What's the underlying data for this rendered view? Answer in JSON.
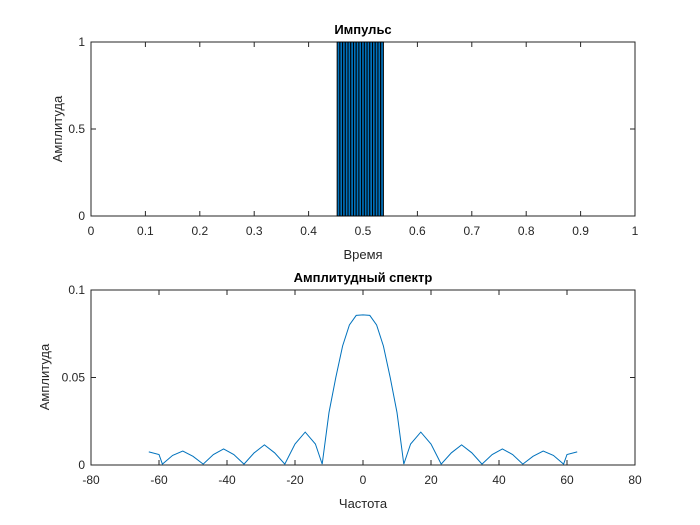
{
  "chart_data": [
    {
      "type": "bar",
      "title": "Импульс",
      "xlabel": "Время",
      "ylabel": "Амплитуда",
      "xlim": [
        0,
        1
      ],
      "ylim": [
        0,
        1
      ],
      "xticks": [
        "0",
        "0.1",
        "0.2",
        "0.3",
        "0.4",
        "0.5",
        "0.6",
        "0.7",
        "0.8",
        "0.9",
        "1"
      ],
      "yticks": [
        "0",
        "0.5",
        "1"
      ],
      "bar_color": "#0072BD",
      "bar_edge_color": "#000000",
      "x": [
        0.455,
        0.46,
        0.465,
        0.47,
        0.475,
        0.48,
        0.485,
        0.49,
        0.495,
        0.5,
        0.505,
        0.51,
        0.515,
        0.52,
        0.525,
        0.53,
        0.535
      ],
      "values": [
        1,
        1,
        1,
        1,
        1,
        1,
        1,
        1,
        1,
        1,
        1,
        1,
        1,
        1,
        1,
        1,
        1
      ]
    },
    {
      "type": "line",
      "title": "Амплитудный спектр",
      "xlabel": "Частота",
      "ylabel": "Амплитуда",
      "xlim": [
        -80,
        80
      ],
      "ylim": [
        0,
        0.1
      ],
      "xticks": [
        "-80",
        "-60",
        "-40",
        "-20",
        "0",
        "20",
        "40",
        "60",
        "80"
      ],
      "yticks": [
        "0",
        "0.05",
        "0.1"
      ],
      "line_color": "#0072BD",
      "x": [
        -63,
        -60,
        -59,
        -56,
        -53,
        -50,
        -47,
        -44,
        -41,
        -38,
        -35,
        -32,
        -29,
        -26,
        -23,
        -20,
        -17,
        -14,
        -12,
        -10,
        -8,
        -6,
        -4,
        -2,
        0,
        2,
        4,
        6,
        8,
        10,
        12,
        14,
        17,
        20,
        23,
        26,
        29,
        32,
        35,
        38,
        41,
        44,
        47,
        50,
        53,
        56,
        59,
        60,
        63
      ],
      "y": [
        0.0075,
        0.006,
        0.0005,
        0.0055,
        0.008,
        0.005,
        0.0005,
        0.006,
        0.0092,
        0.006,
        0.0005,
        0.007,
        0.0115,
        0.007,
        0.0005,
        0.012,
        0.0188,
        0.012,
        0.0005,
        0.03,
        0.05,
        0.068,
        0.08,
        0.0855,
        0.0858,
        0.0855,
        0.08,
        0.068,
        0.05,
        0.03,
        0.0005,
        0.012,
        0.0188,
        0.012,
        0.0005,
        0.007,
        0.0115,
        0.007,
        0.0005,
        0.006,
        0.0092,
        0.006,
        0.0005,
        0.005,
        0.008,
        0.0055,
        0.0005,
        0.006,
        0.0075
      ]
    }
  ]
}
